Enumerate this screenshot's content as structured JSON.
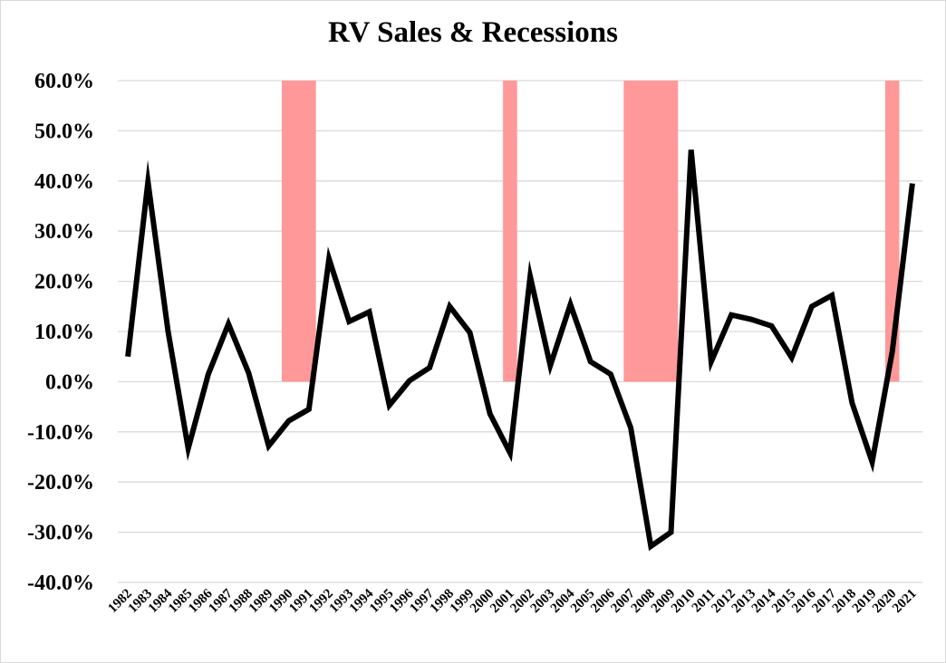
{
  "chart_data": {
    "type": "line",
    "title": "RV Sales & Recessions",
    "xlabel": "",
    "ylabel": "",
    "ylim": [
      -40,
      60
    ],
    "y_tick_labels": [
      "60.0%",
      "50.0%",
      "40.0%",
      "30.0%",
      "20.0%",
      "10.0%",
      "0.0%",
      "-10.0%",
      "-20.0%",
      "-30.0%",
      "-40.0%"
    ],
    "y_ticks": [
      60,
      50,
      40,
      30,
      20,
      10,
      0,
      -10,
      -20,
      -30,
      -40
    ],
    "grid": true,
    "categories": [
      "1982",
      "1983",
      "1984",
      "1985",
      "1986",
      "1987",
      "1988",
      "1989",
      "1990",
      "1991",
      "1992",
      "1993",
      "1994",
      "1995",
      "1996",
      "1997",
      "1998",
      "1999",
      "2000",
      "2001",
      "2002",
      "2003",
      "2004",
      "2005",
      "2006",
      "2007",
      "2008",
      "2009",
      "2010",
      "2011",
      "2012",
      "2013",
      "2014",
      "2015",
      "2016",
      "2017",
      "2018",
      "2019",
      "2020",
      "2021"
    ],
    "series": [
      {
        "type": "line",
        "color": "#000000",
        "values": [
          5.0,
          39.8,
          10.0,
          -13.3,
          1.5,
          11.5,
          1.8,
          -12.8,
          -7.8,
          -5.5,
          24.5,
          12.0,
          13.9,
          -4.7,
          0.2,
          2.8,
          15.0,
          9.8,
          -6.4,
          -14.2,
          21.0,
          3.2,
          15.4,
          4.0,
          1.5,
          -9.2,
          -32.8,
          -30.0,
          46.2,
          4.0,
          13.3,
          12.4,
          11.1,
          4.8,
          15.0,
          17.2,
          -4.2,
          -16.0,
          6.0,
          39.5
        ]
      }
    ],
    "recession_bars": {
      "color": "#ff9999",
      "value": 60,
      "periods": [
        {
          "from": "1990",
          "to": "1991"
        },
        {
          "from": "2001",
          "to": "2001"
        },
        {
          "from": "2007",
          "to": "2009"
        },
        {
          "from": "2020",
          "to": "2020"
        }
      ]
    },
    "grid_color": "#d9d9d9"
  }
}
